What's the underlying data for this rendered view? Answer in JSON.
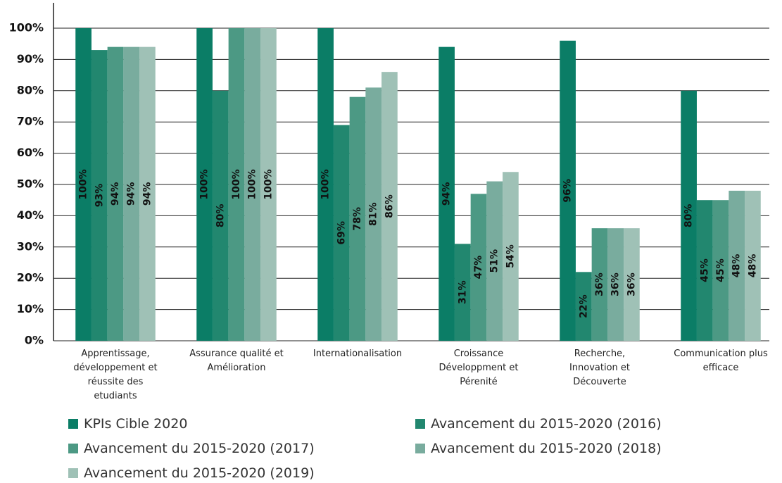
{
  "chart_data": {
    "type": "bar",
    "categories": [
      "Apprentissage, développement et réussite des etudiants",
      "Assurance qualité et Amélioration",
      "Internationalisation",
      "Croissance Développment et Pérenité",
      "Recherche, Innovation et Découverte",
      "Communication plus efficace"
    ],
    "series": [
      {
        "name": "KPIs Cible 2020",
        "color": "#0b7d66",
        "values": [
          100,
          100,
          100,
          94,
          96,
          80
        ],
        "value_labels": [
          "100%",
          "100%",
          "100%",
          "94%",
          "96%",
          "80%"
        ]
      },
      {
        "name": "Avancement du 2015-2020 (2016)",
        "color": "#22876f",
        "values": [
          93,
          80,
          69,
          31,
          22,
          45
        ],
        "value_labels": [
          "93%",
          "80%",
          "69%",
          "31%",
          "22%",
          "45%"
        ]
      },
      {
        "name": "Avancement du 2015-2020 (2017)",
        "color": "#4c9984",
        "values": [
          94,
          100,
          78,
          47,
          36,
          45
        ],
        "value_labels": [
          "94%",
          "100%",
          "78%",
          "47%",
          "36%",
          "45%"
        ]
      },
      {
        "name": "Avancement du 2015-2020 (2018)",
        "color": "#79ac9e",
        "values": [
          94,
          100,
          81,
          51,
          36,
          48
        ],
        "value_labels": [
          "94%",
          "100%",
          "81%",
          "51%",
          "36%",
          "48%"
        ]
      },
      {
        "name": "Avancement du 2015-2020 (2019)",
        "color": "#9fc1b6",
        "values": [
          94,
          100,
          86,
          54,
          36,
          48
        ],
        "value_labels": [
          "94%",
          "100%",
          "86%",
          "54%",
          "36%",
          "48%"
        ]
      }
    ],
    "ylim": [
      0,
      100
    ],
    "yticks": [
      {
        "value": 0,
        "label": "0%"
      },
      {
        "value": 10,
        "label": "10%"
      },
      {
        "value": 20,
        "label": "20%"
      },
      {
        "value": 30,
        "label": "30%"
      },
      {
        "value": 40,
        "label": "40%"
      },
      {
        "value": 50,
        "label": "50%"
      },
      {
        "value": 60,
        "label": "60%"
      },
      {
        "value": 70,
        "label": "70%"
      },
      {
        "value": 80,
        "label": "80%"
      },
      {
        "value": 90,
        "label": "90%"
      },
      {
        "value": 100,
        "label": "100%"
      }
    ],
    "grid": true
  }
}
